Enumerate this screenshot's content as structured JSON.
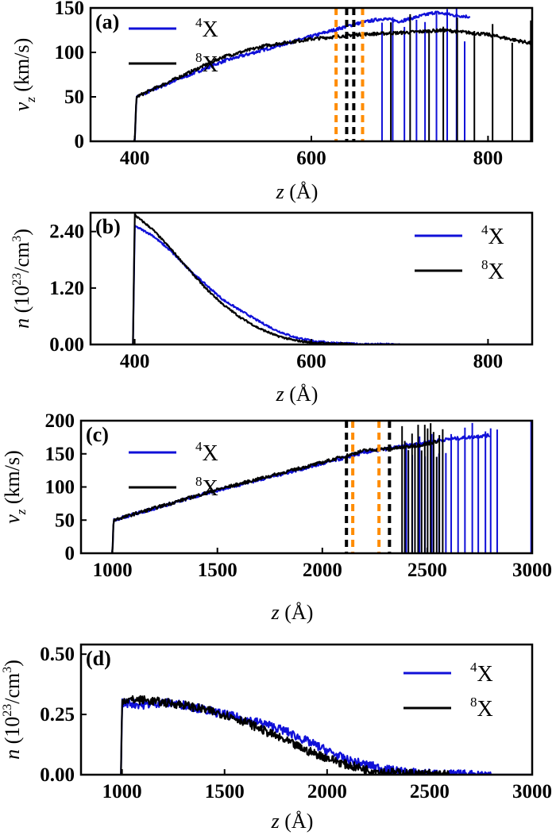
{
  "colors": {
    "series_4X": "#1010d8",
    "series_8X": "#000000",
    "marker_orange": "#ff8c00",
    "marker_black": "#000000"
  },
  "chart_data": [
    {
      "panel": "(a)",
      "type": "line",
      "ylabel": "v_z (km/s)",
      "xlabel": "z (Å)",
      "xlim": [
        350,
        850
      ],
      "ylim": [
        0,
        150
      ],
      "xticks": [
        400,
        600,
        800
      ],
      "yticks": [
        0,
        50,
        100,
        150
      ],
      "legend": "top-left",
      "grid": false,
      "series": [
        {
          "name": "4X",
          "color": "#1010d8",
          "x": [
            398,
            400,
            402,
            450,
            500,
            550,
            600,
            650,
            680,
            700,
            720,
            740,
            760,
            780
          ],
          "y": [
            0,
            0,
            50,
            70,
            90,
            104,
            118,
            132,
            138,
            135,
            140,
            145,
            142,
            140
          ]
        },
        {
          "name": "8X",
          "color": "#000000",
          "x": [
            398,
            400,
            402,
            450,
            500,
            550,
            600,
            650,
            700,
            750,
            800,
            850
          ],
          "y": [
            0,
            0,
            50,
            72,
            95,
            108,
            115,
            120,
            122,
            125,
            120,
            110
          ]
        }
      ],
      "vertical_markers": [
        {
          "x": 628,
          "color": "orange"
        },
        {
          "x": 640,
          "color": "black"
        },
        {
          "x": 648,
          "color": "black"
        },
        {
          "x": 658,
          "color": "orange"
        }
      ]
    },
    {
      "panel": "(b)",
      "type": "line",
      "ylabel": "n (10^23/cm^3)",
      "xlabel": "z (Å)",
      "xlim": [
        350,
        850
      ],
      "ylim": [
        0,
        2.8
      ],
      "xticks": [
        400,
        600,
        800
      ],
      "yticks": [
        0.0,
        1.2,
        2.4
      ],
      "ytick_labels": [
        "0.00",
        "1.20",
        "2.40"
      ],
      "legend": "top-right",
      "grid": false,
      "series": [
        {
          "name": "4X",
          "color": "#1010d8",
          "x": [
            398,
            400,
            402,
            420,
            440,
            460,
            480,
            500,
            520,
            540,
            560,
            580,
            600,
            620,
            650,
            700,
            850
          ],
          "y": [
            0,
            2.5,
            2.5,
            2.32,
            2.0,
            1.62,
            1.28,
            0.95,
            0.72,
            0.5,
            0.3,
            0.16,
            0.08,
            0.04,
            0.01,
            0.0,
            0.0
          ]
        },
        {
          "name": "8X",
          "color": "#000000",
          "x": [
            398,
            400,
            402,
            420,
            440,
            460,
            480,
            500,
            520,
            540,
            560,
            580,
            600,
            620,
            650,
            700,
            850
          ],
          "y": [
            0,
            2.78,
            2.72,
            2.45,
            2.05,
            1.62,
            1.2,
            0.85,
            0.57,
            0.35,
            0.19,
            0.09,
            0.04,
            0.02,
            0.0,
            0.0,
            0.0
          ]
        }
      ]
    },
    {
      "panel": "(c)",
      "type": "line",
      "ylabel": "v_z (km/s)",
      "xlabel": "z (Å)",
      "xlim": [
        850,
        3000
      ],
      "ylim": [
        0,
        200
      ],
      "xticks": [
        1000,
        1500,
        2000,
        2500,
        3000
      ],
      "yticks": [
        0,
        50,
        100,
        150,
        200
      ],
      "legend": "top-left",
      "grid": false,
      "series": [
        {
          "name": "4X",
          "color": "#1010d8",
          "x": [
            995,
            1000,
            1005,
            1500,
            2000,
            2200,
            2400,
            2500,
            2600,
            2700,
            2800
          ],
          "y": [
            0,
            0,
            50,
            95,
            135,
            152,
            162,
            168,
            172,
            175,
            178
          ]
        },
        {
          "name": "8X",
          "color": "#000000",
          "x": [
            995,
            1000,
            1005,
            1500,
            2000,
            2200,
            2400,
            2500,
            2560
          ],
          "y": [
            0,
            0,
            50,
            96,
            137,
            155,
            160,
            165,
            170
          ]
        }
      ],
      "vertical_markers": [
        {
          "x": 2115,
          "color": "black"
        },
        {
          "x": 2145,
          "color": "orange"
        },
        {
          "x": 2270,
          "color": "orange"
        },
        {
          "x": 2320,
          "color": "black"
        }
      ]
    },
    {
      "panel": "(d)",
      "type": "line",
      "ylabel": "n (10^23/cm^3)",
      "xlabel": "z (Å)",
      "xlim": [
        800,
        3000
      ],
      "ylim": [
        0,
        0.54
      ],
      "xticks": [
        1000,
        1500,
        2000,
        2500,
        3000
      ],
      "yticks": [
        0.0,
        0.25,
        0.5
      ],
      "ytick_labels": [
        "0.00",
        "0.25",
        "0.50"
      ],
      "legend": "top-right",
      "grid": false,
      "series": [
        {
          "name": "4X",
          "color": "#1010d8",
          "x": [
            995,
            1000,
            1100,
            1200,
            1300,
            1400,
            1500,
            1600,
            1700,
            1800,
            1900,
            2000,
            2100,
            2200,
            2300,
            2400,
            2500,
            2600,
            2800,
            3000
          ],
          "y": [
            0,
            0.3,
            0.29,
            0.3,
            0.29,
            0.27,
            0.25,
            0.23,
            0.21,
            0.18,
            0.14,
            0.1,
            0.06,
            0.04,
            0.02,
            0.01,
            0.005,
            0.002,
            0.0,
            0.0
          ]
        },
        {
          "name": "8X",
          "color": "#000000",
          "x": [
            995,
            1000,
            1100,
            1200,
            1300,
            1400,
            1500,
            1600,
            1700,
            1800,
            1900,
            2000,
            2100,
            2200,
            2300,
            2400,
            2500,
            2600,
            2800,
            3000
          ],
          "y": [
            0,
            0.31,
            0.31,
            0.3,
            0.29,
            0.27,
            0.25,
            0.22,
            0.18,
            0.14,
            0.1,
            0.07,
            0.04,
            0.02,
            0.01,
            0.005,
            0.002,
            0.0,
            0.0,
            0.0
          ]
        }
      ]
    }
  ],
  "panels": [
    {
      "label": "(a)",
      "ytick_labels": [
        "0",
        "50",
        "100",
        "150"
      ],
      "xtick_labels": [
        "400",
        "600",
        "800"
      ],
      "y_var": "v",
      "y_sub": "z",
      "y_unit": " (km/s)",
      "x_var": "z",
      "x_unit": " (Å)",
      "leg": [
        {
          "sup": "4",
          "txt": "X"
        },
        {
          "sup": "8",
          "txt": "X"
        }
      ]
    },
    {
      "label": "(b)",
      "ytick_labels": [
        "0.00",
        "1.20",
        "2.40"
      ],
      "xtick_labels": [
        "400",
        "600",
        "800"
      ],
      "y_var": "n",
      "y_unit_pre": " (10",
      "y_exp": "23",
      "y_unit_mid": "/cm",
      "y_exp2": "3",
      "y_unit_post": ")",
      "x_var": "z",
      "x_unit": " (Å)",
      "leg": [
        {
          "sup": "4",
          "txt": "X"
        },
        {
          "sup": "8",
          "txt": "X"
        }
      ]
    },
    {
      "label": "(c)",
      "ytick_labels": [
        "0",
        "50",
        "100",
        "150",
        "200"
      ],
      "xtick_labels": [
        "1000",
        "1500",
        "2000",
        "2500",
        "3000"
      ],
      "y_var": "v",
      "y_sub": "z",
      "y_unit": " (km/s)",
      "x_var": "z",
      "x_unit": " (Å)",
      "leg": [
        {
          "sup": "4",
          "txt": "X"
        },
        {
          "sup": "8",
          "txt": "X"
        }
      ]
    },
    {
      "label": "(d)",
      "ytick_labels": [
        "0.00",
        "0.25",
        "0.50"
      ],
      "xtick_labels": [
        "1000",
        "1500",
        "2000",
        "2500",
        "3000"
      ],
      "y_var": "n",
      "y_unit_pre": " (10",
      "y_exp": "23",
      "y_unit_mid": "/cm",
      "y_exp2": "3",
      "y_unit_post": ")",
      "x_var": "z",
      "x_unit": " (Å)",
      "leg": [
        {
          "sup": "4",
          "txt": "X"
        },
        {
          "sup": "8",
          "txt": "X"
        }
      ]
    }
  ]
}
